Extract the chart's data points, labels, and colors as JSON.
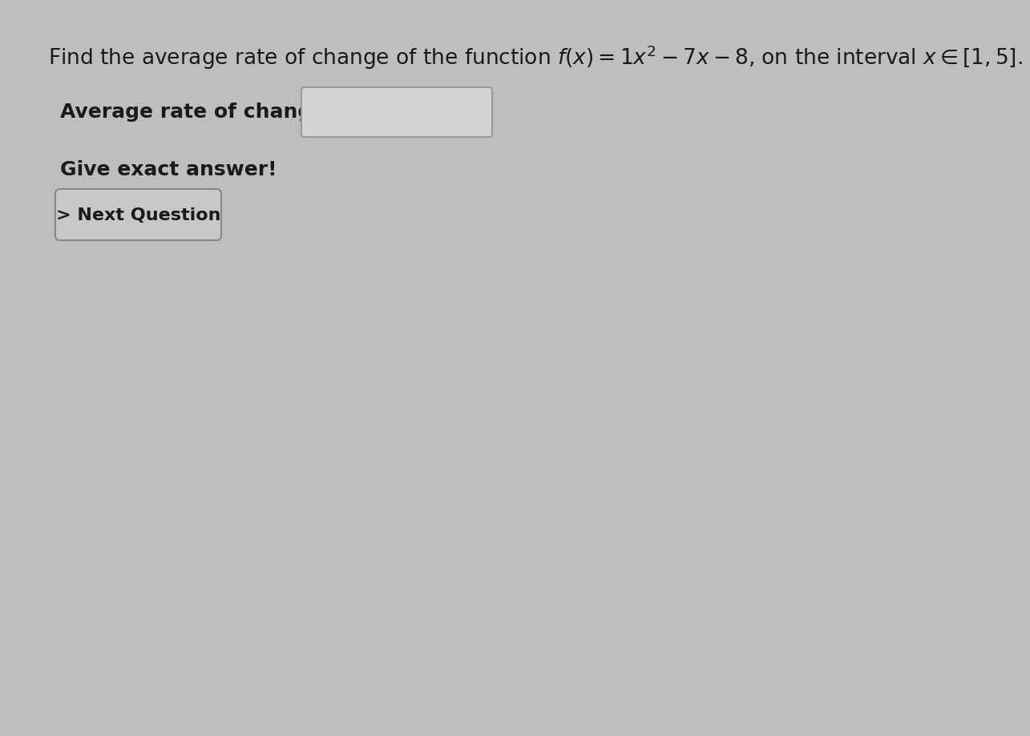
{
  "background_color": "#bebebe",
  "title_text_plain": "Find the average rate of change of the function ",
  "title_text_math": "$f(x) = 1x^2 - 7x - 8$",
  "title_text_end": ", on the interval $x \\in [1,5]$.",
  "label_text": "Average rate of change =",
  "give_text": "Give exact answer!",
  "button_text": "> Next Question",
  "title_fontsize": 19,
  "body_fontsize": 18,
  "button_fontsize": 16,
  "text_color": "#1a1a1a",
  "input_box_color": "#d4d4d4",
  "input_box_edge": "#999999",
  "button_color": "#c8c8c8",
  "button_edge": "#888888"
}
